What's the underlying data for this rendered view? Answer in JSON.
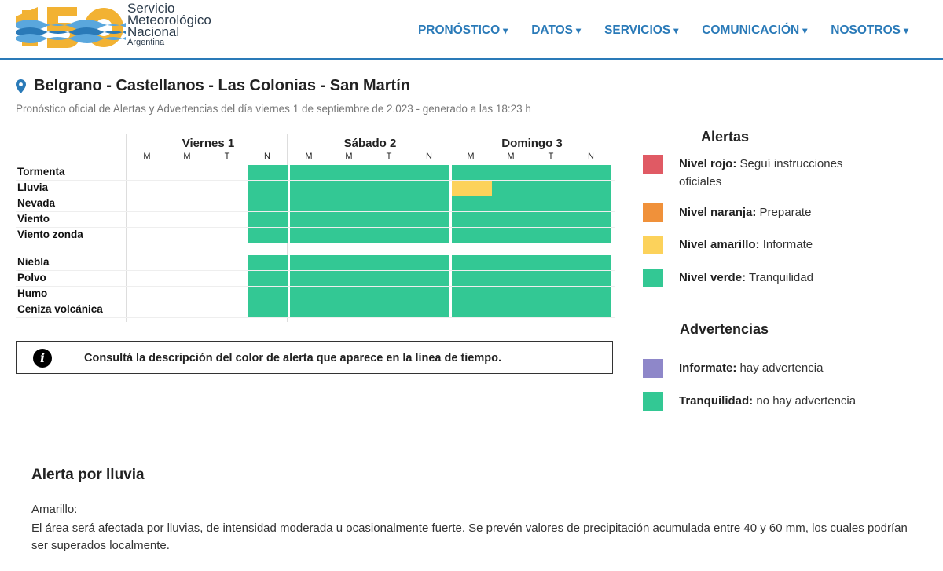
{
  "header": {
    "logo_number": "150",
    "brand_line1": "Servicio",
    "brand_line2": "Meteorológico",
    "brand_line3": "Nacional",
    "brand_line4": "Argentina",
    "nav": [
      {
        "label": "PRONÓSTICO"
      },
      {
        "label": "DATOS"
      },
      {
        "label": "SERVICIOS"
      },
      {
        "label": "COMUNICACIÓN"
      },
      {
        "label": "NOSOTROS"
      }
    ]
  },
  "page": {
    "title": "Belgrano - Castellanos - Las Colonias - San Martín",
    "subtitle": "Pronóstico oficial de Alertas y Advertencias del día viernes 1 de septiembre de 2.023 - generado a las 18:23 h"
  },
  "grid": {
    "days": [
      "Viernes 1",
      "Sábado 2",
      "Domingo 3"
    ],
    "slots": [
      "M",
      "M",
      "T",
      "N"
    ],
    "rows": [
      {
        "label": "Tormenta",
        "cells": [
          "none",
          "none",
          "none",
          "green",
          "green",
          "green",
          "green",
          "green",
          "green",
          "green",
          "green",
          "green"
        ]
      },
      {
        "label": "Lluvia",
        "cells": [
          "none",
          "none",
          "none",
          "green",
          "green",
          "green",
          "green",
          "green",
          "yellow",
          "green",
          "green",
          "green"
        ]
      },
      {
        "label": "Nevada",
        "cells": [
          "none",
          "none",
          "none",
          "green",
          "green",
          "green",
          "green",
          "green",
          "green",
          "green",
          "green",
          "green"
        ]
      },
      {
        "label": "Viento",
        "cells": [
          "none",
          "none",
          "none",
          "green",
          "green",
          "green",
          "green",
          "green",
          "green",
          "green",
          "green",
          "green"
        ]
      },
      {
        "label": "Viento zonda",
        "cells": [
          "none",
          "none",
          "none",
          "green",
          "green",
          "green",
          "green",
          "green",
          "green",
          "green",
          "green",
          "green"
        ]
      },
      {
        "label": "Niebla",
        "cells": [
          "none",
          "none",
          "none",
          "green",
          "green",
          "green",
          "green",
          "green",
          "green",
          "green",
          "green",
          "green"
        ]
      },
      {
        "label": "Polvo",
        "cells": [
          "none",
          "none",
          "none",
          "green",
          "green",
          "green",
          "green",
          "green",
          "green",
          "green",
          "green",
          "green"
        ]
      },
      {
        "label": "Humo",
        "cells": [
          "none",
          "none",
          "none",
          "green",
          "green",
          "green",
          "green",
          "green",
          "green",
          "green",
          "green",
          "green"
        ]
      },
      {
        "label": "Ceniza volcánica",
        "cells": [
          "none",
          "none",
          "none",
          "green",
          "green",
          "green",
          "green",
          "green",
          "green",
          "green",
          "green",
          "green"
        ]
      }
    ]
  },
  "info": {
    "text": "Consultá la descripción del color de alerta que aparece en la línea de tiempo."
  },
  "legend": {
    "alertas_title": "Alertas",
    "alertas": [
      {
        "bold": "Nivel rojo:",
        "text": " Seguí instrucciones oficiales",
        "color": "#e05a64"
      },
      {
        "bold": "Nivel naranja:",
        "text": " Preparate",
        "color": "#f0913a"
      },
      {
        "bold": "Nivel amarillo:",
        "text": " Informate",
        "color": "#fcd25b"
      },
      {
        "bold": "Nivel verde:",
        "text": " Tranquilidad",
        "color": "#33c894"
      }
    ],
    "advertencias_title": "Advertencias",
    "advertencias": [
      {
        "bold": "Informate:",
        "text": " hay advertencia",
        "color": "#8e87c9"
      },
      {
        "bold": "Tranquilidad:",
        "text": " no hay advertencia",
        "color": "#33c894"
      }
    ]
  },
  "colors": {
    "green": "#33c894",
    "yellow": "#fcd25b",
    "accent": "#2a7ab8"
  },
  "alert": {
    "title": "Alerta por lluvia",
    "level": "Amarillo:",
    "description": "El área será afectada por lluvias, de intensidad moderada u ocasionalmente fuerte. Se prevén valores de precipitación acumulada entre 40 y 60 mm, los cuales podrían ser superados localmente."
  }
}
